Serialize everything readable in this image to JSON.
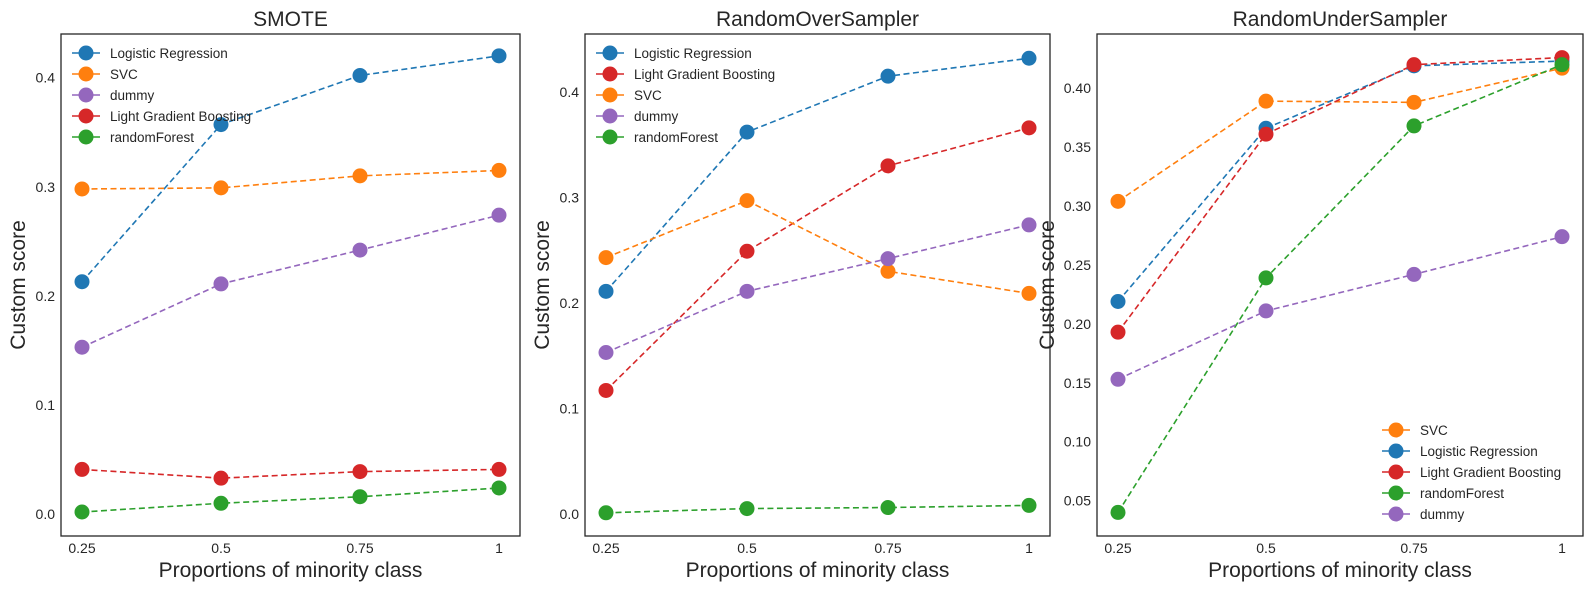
{
  "chart_data": [
    {
      "type": "line",
      "title": "SMOTE",
      "xlabel": "Proportions of minority class",
      "ylabel": "Custom score",
      "categories": [
        "0.25",
        "0.5",
        "0.75",
        "1"
      ],
      "x": [
        0.25,
        0.5,
        0.75,
        1
      ],
      "ylim": [
        -0.02,
        0.44
      ],
      "yticks": [
        0.0,
        0.1,
        0.2,
        0.3,
        0.4
      ],
      "ytick_labels": [
        "0.0",
        "0.1",
        "0.2",
        "0.3",
        "0.4"
      ],
      "grid": false,
      "legend_position": "top-left",
      "line_style": "dashed",
      "series": [
        {
          "name": "Logistic Regression",
          "color": "#1f77b4",
          "values": [
            0.213,
            0.357,
            0.402,
            0.42
          ]
        },
        {
          "name": "SVC",
          "color": "#ff7f0e",
          "values": [
            0.298,
            0.299,
            0.31,
            0.315
          ]
        },
        {
          "name": "dummy",
          "color": "#9467bd",
          "values": [
            0.153,
            0.211,
            0.242,
            0.274
          ]
        },
        {
          "name": "Light Gradient Boosting",
          "color": "#d62728",
          "values": [
            0.041,
            0.033,
            0.039,
            0.041
          ]
        },
        {
          "name": "randomForest",
          "color": "#2ca02c",
          "values": [
            0.002,
            0.01,
            0.016,
            0.024
          ]
        }
      ]
    },
    {
      "type": "line",
      "title": "RandomOverSampler",
      "xlabel": "Proportions of minority class",
      "ylabel": "Custom score",
      "categories": [
        "0.25",
        "0.5",
        "0.75",
        "1"
      ],
      "x": [
        0.25,
        0.5,
        0.75,
        1
      ],
      "ylim": [
        -0.021,
        0.455
      ],
      "yticks": [
        0.0,
        0.1,
        0.2,
        0.3,
        0.4
      ],
      "ytick_labels": [
        "0.0",
        "0.1",
        "0.2",
        "0.3",
        "0.4"
      ],
      "grid": false,
      "legend_position": "top-left",
      "line_style": "dashed",
      "series": [
        {
          "name": "Logistic Regression",
          "color": "#1f77b4",
          "values": [
            0.211,
            0.362,
            0.415,
            0.432
          ]
        },
        {
          "name": "Light Gradient Boosting",
          "color": "#d62728",
          "values": [
            0.117,
            0.249,
            0.33,
            0.366
          ]
        },
        {
          "name": "SVC",
          "color": "#ff7f0e",
          "values": [
            0.243,
            0.297,
            0.23,
            0.209
          ]
        },
        {
          "name": "dummy",
          "color": "#9467bd",
          "values": [
            0.153,
            0.211,
            0.242,
            0.274
          ]
        },
        {
          "name": "randomForest",
          "color": "#2ca02c",
          "values": [
            0.001,
            0.005,
            0.006,
            0.008
          ]
        }
      ]
    },
    {
      "type": "line",
      "title": "RandomUnderSampler",
      "xlabel": "Proportions of minority class",
      "ylabel": "Custom score",
      "categories": [
        "0.25",
        "0.5",
        "0.75",
        "1"
      ],
      "x": [
        0.25,
        0.5,
        0.75,
        1
      ],
      "ylim": [
        0.02,
        0.446
      ],
      "yticks": [
        0.05,
        0.1,
        0.15,
        0.2,
        0.25,
        0.3,
        0.35,
        0.4
      ],
      "ytick_labels": [
        "0.05",
        "0.10",
        "0.15",
        "0.20",
        "0.25",
        "0.30",
        "0.35",
        "0.40"
      ],
      "grid": false,
      "legend_position": "bottom-right",
      "line_style": "dashed",
      "series": [
        {
          "name": "SVC",
          "color": "#ff7f0e",
          "values": [
            0.304,
            0.389,
            0.388,
            0.417
          ]
        },
        {
          "name": "Logistic Regression",
          "color": "#1f77b4",
          "values": [
            0.219,
            0.366,
            0.419,
            0.423
          ]
        },
        {
          "name": "Light Gradient Boosting",
          "color": "#d62728",
          "values": [
            0.193,
            0.361,
            0.42,
            0.426
          ]
        },
        {
          "name": "randomForest",
          "color": "#2ca02c",
          "values": [
            0.04,
            0.239,
            0.368,
            0.42
          ]
        },
        {
          "name": "dummy",
          "color": "#9467bd",
          "values": [
            0.153,
            0.211,
            0.242,
            0.274
          ]
        }
      ]
    }
  ]
}
